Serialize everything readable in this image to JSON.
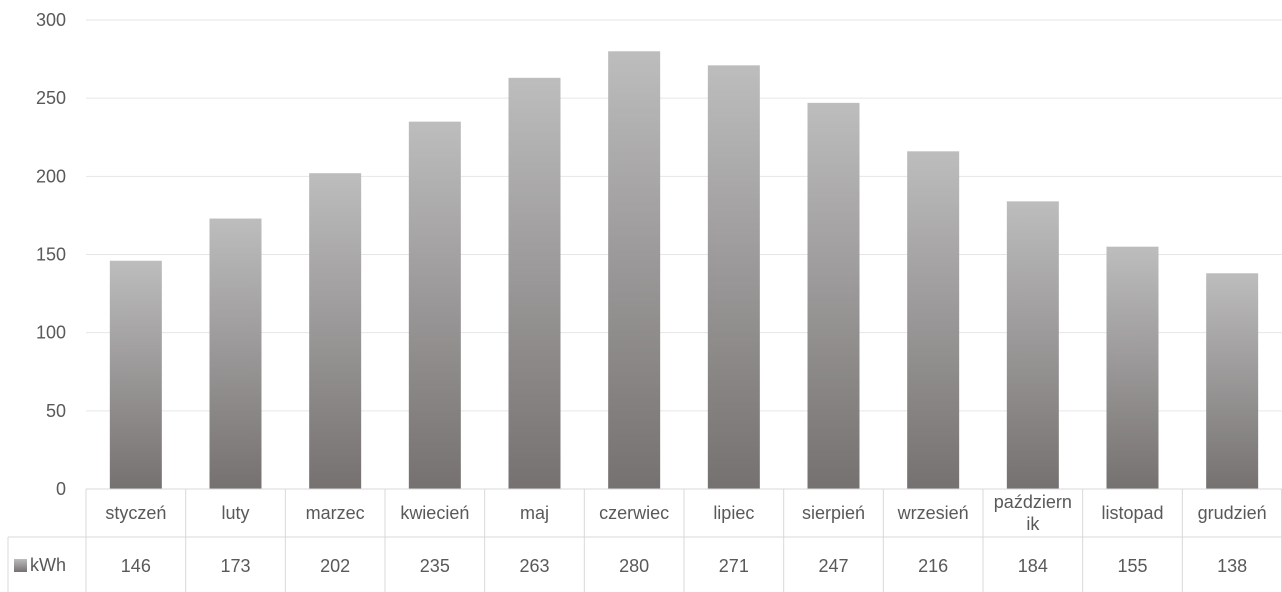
{
  "chart_data": {
    "type": "bar",
    "title": "",
    "xlabel": "",
    "ylabel": "",
    "ylim": [
      0,
      300
    ],
    "yticks": [
      0,
      50,
      100,
      150,
      200,
      250,
      300
    ],
    "grid": true,
    "legend_placement": "data-table-left",
    "categories": [
      [
        "styczeń"
      ],
      [
        "luty"
      ],
      [
        "marzec"
      ],
      [
        "kwiecień"
      ],
      [
        "maj"
      ],
      [
        "czerwiec"
      ],
      [
        "lipiec"
      ],
      [
        "sierpień"
      ],
      [
        "wrzesień"
      ],
      [
        "październ",
        "ik"
      ],
      [
        "listopad"
      ],
      [
        "grudzień"
      ]
    ],
    "series": [
      {
        "name": "kWh",
        "values": [
          146,
          173,
          202,
          235,
          263,
          280,
          271,
          247,
          216,
          184,
          155,
          138
        ]
      }
    ],
    "colors": {
      "bar_top": "#bdbdbd",
      "bar_bottom": "#767171",
      "grid": "#e6e6e6",
      "table_border": "#d9d9d9",
      "axis_text": "#595959"
    }
  }
}
